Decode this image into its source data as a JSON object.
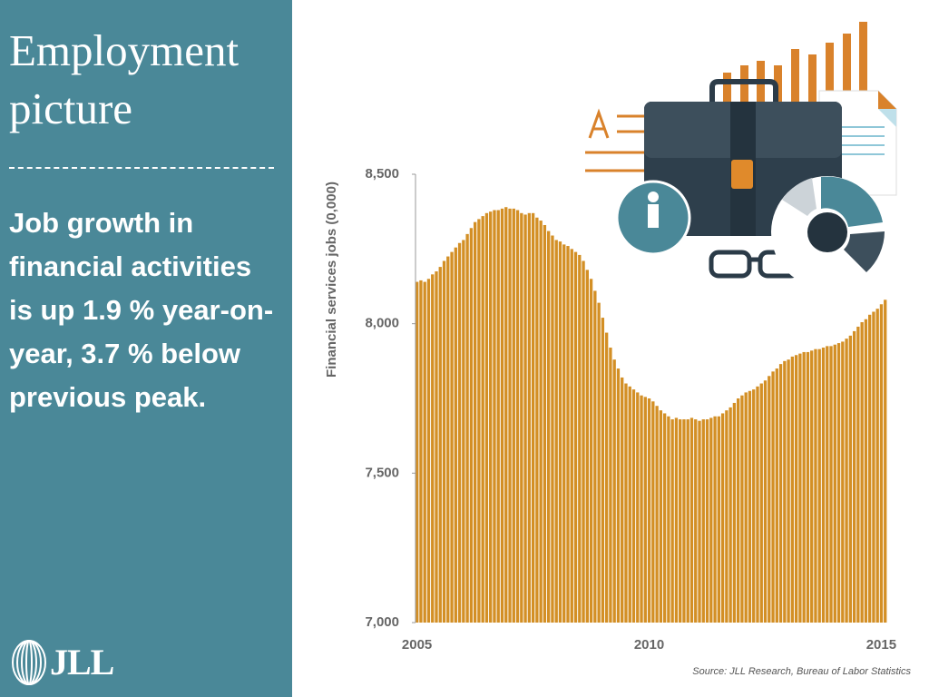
{
  "logo": "JLL",
  "chart_data": {
    "type": "bar",
    "title": "Employment picture",
    "subtitle": "Job growth in financial activities is up 1.9 % year-on-year, 3.7 % below previous peak.",
    "y_label": "Financial services jobs (0,000)",
    "source": "Source: JLL Research, Bureau of Labor Statistics",
    "color": "#d38f25",
    "ylim": [
      7000,
      8500
    ],
    "yticks": [
      {
        "value": 7000,
        "label": "7,000"
      },
      {
        "value": 7500,
        "label": "7,500"
      },
      {
        "value": 8000,
        "label": "8,000"
      },
      {
        "value": 8500,
        "label": "8,500"
      }
    ],
    "categories": [
      "2005",
      null,
      null,
      null,
      null,
      null,
      null,
      null,
      null,
      null,
      null,
      null,
      null,
      null,
      null,
      null,
      null,
      null,
      null,
      null,
      null,
      null,
      null,
      null,
      null,
      null,
      null,
      null,
      null,
      null,
      null,
      null,
      null,
      null,
      null,
      null,
      null,
      null,
      null,
      null,
      null,
      null,
      null,
      null,
      null,
      null,
      null,
      null,
      null,
      null,
      null,
      null,
      null,
      null,
      null,
      null,
      null,
      null,
      null,
      null,
      "2010",
      null,
      null,
      null,
      null,
      null,
      null,
      null,
      null,
      null,
      null,
      null,
      null,
      null,
      null,
      null,
      null,
      null,
      null,
      null,
      null,
      null,
      null,
      null,
      null,
      null,
      null,
      null,
      null,
      null,
      null,
      null,
      null,
      null,
      null,
      null,
      null,
      null,
      null,
      null,
      null,
      null,
      null,
      null,
      null,
      null,
      null,
      null,
      null,
      null,
      null,
      null,
      null,
      null,
      null,
      null,
      null,
      null,
      null,
      null,
      "2015",
      null
    ],
    "values": [
      8140,
      8145,
      8140,
      8150,
      8165,
      8175,
      8190,
      8210,
      8225,
      8240,
      8255,
      8270,
      8280,
      8300,
      8320,
      8340,
      8350,
      8360,
      8370,
      8375,
      8380,
      8380,
      8385,
      8390,
      8385,
      8385,
      8380,
      8370,
      8365,
      8370,
      8370,
      8355,
      8345,
      8330,
      8310,
      8295,
      8280,
      8275,
      8265,
      8260,
      8250,
      8240,
      8230,
      8210,
      8180,
      8150,
      8110,
      8070,
      8020,
      7970,
      7920,
      7880,
      7850,
      7820,
      7800,
      7790,
      7780,
      7770,
      7760,
      7755,
      7750,
      7740,
      7725,
      7710,
      7700,
      7690,
      7680,
      7685,
      7680,
      7680,
      7680,
      7685,
      7680,
      7675,
      7680,
      7680,
      7685,
      7690,
      7690,
      7700,
      7710,
      7720,
      7735,
      7750,
      7760,
      7770,
      7775,
      7780,
      7790,
      7800,
      7810,
      7825,
      7840,
      7850,
      7865,
      7875,
      7880,
      7890,
      7895,
      7900,
      7905,
      7905,
      7910,
      7915,
      7915,
      7920,
      7925,
      7925,
      7930,
      7935,
      7940,
      7950,
      7960,
      7975,
      7990,
      8005,
      8015,
      8030,
      8040,
      8050,
      8065,
      8080
    ]
  }
}
